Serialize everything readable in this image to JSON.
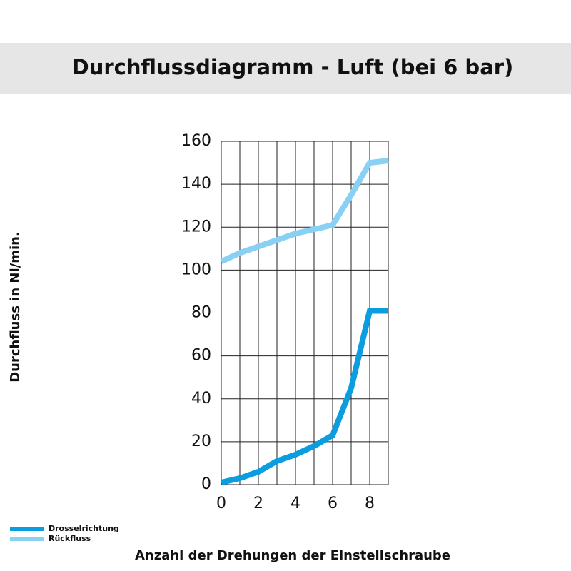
{
  "chart_data": {
    "type": "line",
    "title": "Durchflussdiagramm - Luft (bei 6 bar)",
    "y_label": "Durchfluss in Nl/min.",
    "x_label": "Anzahl der Drehungen der Einstellschraube",
    "x": [
      0,
      1,
      2,
      3,
      4,
      5,
      6,
      7,
      8,
      9
    ],
    "series": [
      {
        "name": "Drosselrichtung",
        "color": "#0a9de0",
        "values": [
          1,
          3,
          6,
          11,
          14,
          18,
          23,
          45,
          81,
          81
        ]
      },
      {
        "name": "Rückfluss",
        "color": "#88d1f5",
        "values": [
          104,
          108,
          111,
          114,
          117,
          119,
          121,
          135,
          150,
          151
        ]
      }
    ],
    "xlim": [
      0,
      9
    ],
    "xticks": [
      0,
      2,
      4,
      6,
      8
    ],
    "xminorticks": [
      1,
      3,
      5,
      7,
      9
    ],
    "ylim": [
      0,
      160
    ],
    "yticks": [
      0,
      20,
      40,
      60,
      80,
      100,
      120,
      140,
      160
    ],
    "grid": true
  }
}
